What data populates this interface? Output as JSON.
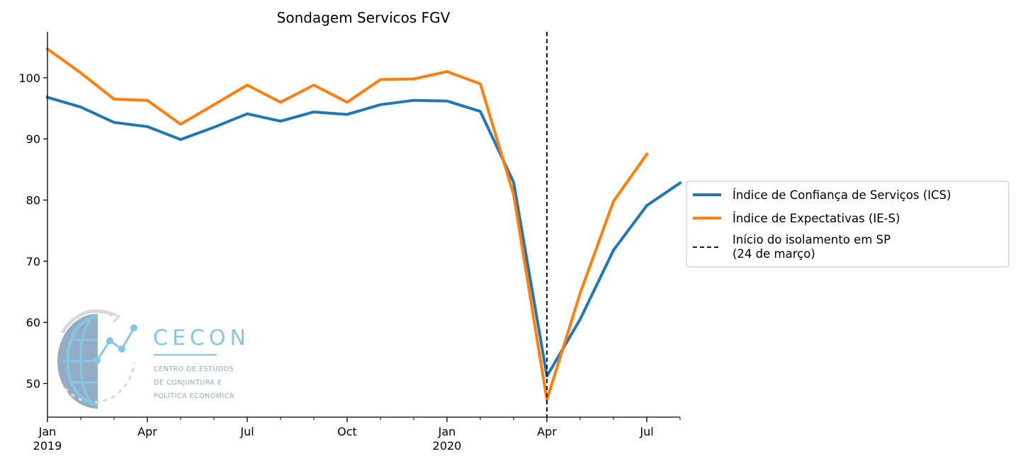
{
  "chart_data": {
    "type": "line",
    "title": "Sondagem Servicos FGV",
    "xlabel": "",
    "ylabel": "",
    "x": [
      "2019-01",
      "2019-02",
      "2019-03",
      "2019-04",
      "2019-05",
      "2019-06",
      "2019-07",
      "2019-08",
      "2019-09",
      "2019-10",
      "2019-11",
      "2019-12",
      "2020-01",
      "2020-02",
      "2020-03",
      "2020-04",
      "2020-05",
      "2020-06",
      "2020-07",
      "2020-08"
    ],
    "xlim": [
      "2019-01",
      "2020-08"
    ],
    "ylim": [
      44.5,
      107.5
    ],
    "yticks": [
      50,
      60,
      70,
      80,
      90,
      100
    ],
    "xtick_labels": [
      {
        "at": "2019-01",
        "lines": [
          "Jan",
          "2019"
        ]
      },
      {
        "at": "2019-04",
        "lines": [
          "Apr"
        ]
      },
      {
        "at": "2019-07",
        "lines": [
          "Jul"
        ]
      },
      {
        "at": "2019-10",
        "lines": [
          "Oct"
        ]
      },
      {
        "at": "2020-01",
        "lines": [
          "Jan",
          "2020"
        ]
      },
      {
        "at": "2020-04",
        "lines": [
          "Apr"
        ]
      },
      {
        "at": "2020-07",
        "lines": [
          "Jul"
        ]
      }
    ],
    "series": [
      {
        "name": "Índice de Confiança de Serviços (ICS)",
        "color": "#1f77b4",
        "values": [
          96.8,
          95.2,
          92.7,
          92.0,
          89.9,
          91.9,
          94.1,
          92.9,
          94.4,
          94.0,
          95.6,
          96.3,
          96.2,
          94.5,
          82.9,
          51.2,
          60.5,
          71.8,
          79.1,
          82.8
        ]
      },
      {
        "name": "Índice de Expectativas (IE-S)",
        "color": "#ff7f0e",
        "values": [
          104.7,
          100.8,
          96.5,
          96.3,
          92.4,
          95.6,
          98.8,
          96.0,
          98.8,
          96.0,
          99.7,
          99.8,
          101.0,
          99.0,
          80.9,
          47.3,
          64.8,
          79.8,
          87.5,
          null
        ]
      }
    ],
    "vline": {
      "at": "2020-04",
      "label": "Início do isolamento em SP\n(24 de março)",
      "color": "#000000",
      "style": "dashed"
    },
    "legend_position": "right, outside plot",
    "grid": false
  },
  "logo": {
    "name": "CECON",
    "subtitle_lines": [
      "CENTRO DE ESTUDOS",
      "DE CONJUNTURA E",
      "POLÍTICA ECONÔMICA"
    ]
  }
}
